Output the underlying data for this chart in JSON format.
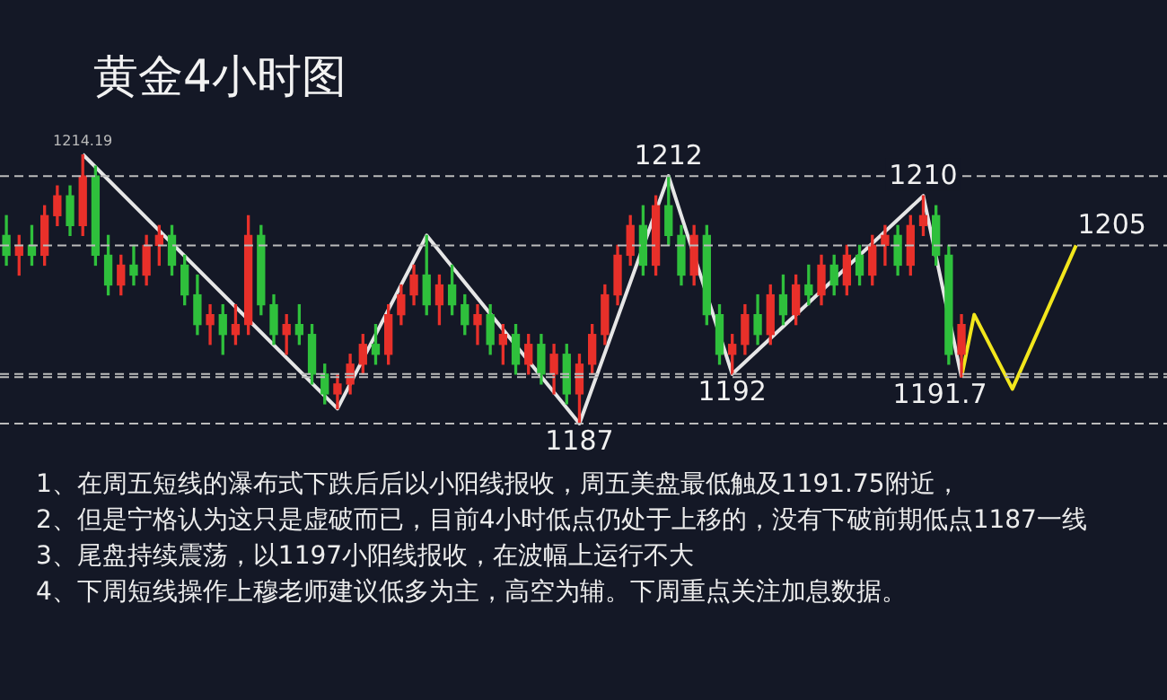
{
  "chart_data": {
    "type": "candlestick",
    "title": "黄金4小时图",
    "categories": [
      null,
      null,
      null,
      null,
      null,
      null,
      null,
      null,
      null,
      null,
      null,
      null,
      null,
      null,
      null,
      null,
      null,
      null,
      null,
      null,
      null,
      null,
      null,
      null,
      null,
      null,
      null,
      null,
      null,
      null,
      null,
      null,
      null,
      null,
      null,
      null,
      null,
      null,
      null,
      null,
      null,
      null,
      null,
      null,
      null,
      null,
      null,
      null,
      null,
      null,
      null,
      null,
      null,
      null,
      null,
      null,
      null,
      null,
      null,
      null,
      null,
      null,
      null,
      null,
      null,
      null,
      null,
      null,
      null,
      null,
      null,
      null,
      null,
      null,
      null,
      null,
      null,
      null,
      null,
      null,
      null,
      null,
      null,
      null,
      null,
      null
    ],
    "ohlc": [
      [
        1206,
        1208,
        1203,
        1204
      ],
      [
        1204,
        1206,
        1202,
        1205
      ],
      [
        1205,
        1207,
        1203,
        1204
      ],
      [
        1204,
        1209,
        1203,
        1208
      ],
      [
        1208,
        1211,
        1207,
        1210
      ],
      [
        1210,
        1211,
        1206,
        1207
      ],
      [
        1207,
        1214.19,
        1206,
        1212
      ],
      [
        1212,
        1213,
        1203,
        1204
      ],
      [
        1204,
        1206,
        1200,
        1201
      ],
      [
        1201,
        1204,
        1200,
        1203
      ],
      [
        1203,
        1205,
        1201,
        1202
      ],
      [
        1202,
        1206,
        1201,
        1205
      ],
      [
        1205,
        1207,
        1203,
        1206
      ],
      [
        1206,
        1207,
        1202,
        1203
      ],
      [
        1203,
        1204,
        1199,
        1200
      ],
      [
        1200,
        1202,
        1196,
        1197
      ],
      [
        1197,
        1199,
        1195,
        1198
      ],
      [
        1198,
        1199,
        1194,
        1196
      ],
      [
        1196,
        1199,
        1195,
        1197
      ],
      [
        1197,
        1208,
        1196,
        1206
      ],
      [
        1206,
        1207,
        1198,
        1199
      ],
      [
        1199,
        1200,
        1195,
        1196
      ],
      [
        1196,
        1198,
        1194,
        1197
      ],
      [
        1197,
        1199,
        1195,
        1196
      ],
      [
        1196,
        1197,
        1191,
        1192
      ],
      [
        1192,
        1193,
        1189,
        1190
      ],
      [
        1190,
        1192,
        1188.5,
        1191
      ],
      [
        1191,
        1194,
        1190,
        1193
      ],
      [
        1193,
        1196,
        1192,
        1195
      ],
      [
        1195,
        1197,
        1193,
        1194
      ],
      [
        1194,
        1199,
        1193,
        1198
      ],
      [
        1198,
        1201,
        1197,
        1200
      ],
      [
        1200,
        1203,
        1199,
        1202
      ],
      [
        1202,
        1206,
        1198,
        1199
      ],
      [
        1199,
        1202,
        1197,
        1201
      ],
      [
        1201,
        1203,
        1198,
        1199
      ],
      [
        1199,
        1200,
        1196,
        1197
      ],
      [
        1197,
        1199,
        1195,
        1198
      ],
      [
        1198,
        1199,
        1194,
        1195
      ],
      [
        1195,
        1197,
        1193,
        1196
      ],
      [
        1196,
        1197,
        1192,
        1193
      ],
      [
        1193,
        1196,
        1192,
        1195
      ],
      [
        1195,
        1196,
        1191,
        1192
      ],
      [
        1192,
        1195,
        1190,
        1194
      ],
      [
        1194,
        1195,
        1189,
        1190
      ],
      [
        1190,
        1194,
        1187,
        1193
      ],
      [
        1193,
        1197,
        1192,
        1196
      ],
      [
        1196,
        1201,
        1195,
        1200
      ],
      [
        1200,
        1205,
        1199,
        1204
      ],
      [
        1204,
        1208,
        1203,
        1207
      ],
      [
        1207,
        1209,
        1202,
        1203
      ],
      [
        1203,
        1210,
        1202,
        1209
      ],
      [
        1209,
        1212,
        1205,
        1206
      ],
      [
        1206,
        1207,
        1201,
        1202
      ],
      [
        1202,
        1207,
        1201,
        1206
      ],
      [
        1206,
        1207,
        1197,
        1198
      ],
      [
        1198,
        1199,
        1193,
        1194
      ],
      [
        1194,
        1196,
        1192,
        1195
      ],
      [
        1195,
        1199,
        1194,
        1198
      ],
      [
        1198,
        1200,
        1195,
        1196
      ],
      [
        1196,
        1201,
        1195,
        1200
      ],
      [
        1200,
        1202,
        1197,
        1198
      ],
      [
        1198,
        1202,
        1197,
        1201
      ],
      [
        1201,
        1203,
        1199,
        1200
      ],
      [
        1200,
        1204,
        1199,
        1203
      ],
      [
        1203,
        1204,
        1200,
        1201
      ],
      [
        1201,
        1205,
        1200,
        1204
      ],
      [
        1204,
        1205,
        1201,
        1202
      ],
      [
        1202,
        1206,
        1201,
        1205
      ],
      [
        1205,
        1207,
        1203,
        1206
      ],
      [
        1206,
        1207,
        1202,
        1203
      ],
      [
        1203,
        1208,
        1202,
        1207
      ],
      [
        1207,
        1210,
        1206,
        1208
      ],
      [
        1208,
        1209,
        1203,
        1204
      ],
      [
        1204,
        1205,
        1193,
        1194
      ],
      [
        1194,
        1198,
        1191.7,
        1197
      ],
      null,
      null,
      null,
      null,
      null,
      null,
      null,
      null,
      null,
      null
    ],
    "colors": [
      "#2fc03c",
      "#e8302a",
      "#2fc03c",
      "#e8302a",
      "#e8302a",
      "#2fc03c",
      "#e8302a",
      "#2fc03c",
      "#2fc03c",
      "#e8302a",
      "#2fc03c",
      "#e8302a",
      "#e8302a",
      "#2fc03c",
      "#2fc03c",
      "#2fc03c",
      "#e8302a",
      "#2fc03c",
      "#e8302a",
      "#e8302a",
      "#2fc03c",
      "#2fc03c",
      "#e8302a",
      "#2fc03c",
      "#2fc03c",
      "#2fc03c",
      "#e8302a",
      "#e8302a",
      "#e8302a",
      "#2fc03c",
      "#e8302a",
      "#e8302a",
      "#e8302a",
      "#2fc03c",
      "#e8302a",
      "#2fc03c",
      "#2fc03c",
      "#e8302a",
      "#2fc03c",
      "#e8302a",
      "#2fc03c",
      "#e8302a",
      "#2fc03c",
      "#e8302a",
      "#2fc03c",
      "#e8302a",
      "#e8302a",
      "#e8302a",
      "#e8302a",
      "#e8302a",
      "#2fc03c",
      "#e8302a",
      "#2fc03c",
      "#2fc03c",
      "#e8302a",
      "#2fc03c",
      "#2fc03c",
      "#e8302a",
      "#e8302a",
      "#2fc03c",
      "#e8302a",
      "#2fc03c",
      "#e8302a",
      "#2fc03c",
      "#e8302a",
      "#2fc03c",
      "#e8302a",
      "#2fc03c",
      "#e8302a",
      "#e8302a",
      "#2fc03c",
      "#e8302a",
      "#e8302a",
      "#2fc03c",
      "#2fc03c",
      "#e8302a",
      null,
      null,
      null,
      null,
      null,
      null,
      null,
      null,
      null,
      null
    ],
    "series": [
      {
        "type": "line",
        "color": "#e6e6e6",
        "values": [
          null,
          null,
          null,
          null,
          null,
          null,
          1214.19,
          null,
          null,
          null,
          null,
          null,
          null,
          null,
          null,
          null,
          null,
          null,
          null,
          null,
          null,
          null,
          null,
          null,
          null,
          null,
          1188.5,
          null,
          null,
          null,
          null,
          null,
          null,
          1206,
          null,
          null,
          null,
          null,
          null,
          null,
          null,
          null,
          null,
          null,
          null,
          1187,
          null,
          null,
          null,
          null,
          null,
          null,
          1212,
          null,
          null,
          null,
          null,
          1192,
          null,
          null,
          null,
          null,
          null,
          null,
          null,
          null,
          null,
          null,
          null,
          null,
          null,
          null,
          1210,
          null,
          null,
          1191.7,
          null,
          null,
          null,
          null,
          null,
          null,
          null,
          null,
          null,
          null
        ]
      },
      {
        "type": "line",
        "color": "#f2e61c",
        "values": [
          null,
          null,
          null,
          null,
          null,
          null,
          null,
          null,
          null,
          null,
          null,
          null,
          null,
          null,
          null,
          null,
          null,
          null,
          null,
          null,
          null,
          null,
          null,
          null,
          null,
          null,
          null,
          null,
          null,
          null,
          null,
          null,
          null,
          null,
          null,
          null,
          null,
          null,
          null,
          null,
          null,
          null,
          null,
          null,
          null,
          null,
          null,
          null,
          null,
          null,
          null,
          null,
          null,
          null,
          null,
          null,
          null,
          null,
          null,
          null,
          null,
          null,
          null,
          null,
          null,
          null,
          null,
          null,
          null,
          null,
          null,
          null,
          null,
          null,
          null,
          1191.7,
          1198,
          null,
          null,
          1190.5,
          null,
          null,
          null,
          null,
          1205,
          null
        ]
      }
    ],
    "ref_lines": [
      {
        "axis": "y",
        "value": 1212,
        "label": "1212",
        "color": "#bbbbbb",
        "line_style": "dashed"
      },
      {
        "axis": "y",
        "value": 1187,
        "label": "1187",
        "color": "#bbbbbb",
        "line_style": "dashed"
      },
      {
        "axis": "y",
        "value": 1192,
        "label": "1192",
        "color": "#bbbbbb",
        "line_style": "dashed"
      },
      {
        "axis": "y",
        "value": 1205,
        "label": "1205",
        "color": "#bbbbbb",
        "line_style": "dashed"
      },
      {
        "axis": "y",
        "value": 1191.7,
        "label": "1191.7",
        "color": "#bbbbbb",
        "line_style": "dashed"
      }
    ],
    "annotations": [
      {
        "text": "1214.19",
        "y": 1214.19
      },
      {
        "text": "1210",
        "y": 1210
      },
      "1、在周五短线的瀑布式下跌后后以小阳线报收，周五美盘最低触及1191.75附近，",
      "2、但是宁格认为这只是虚破而已，目前4小时低点仍处于上移的，没有下破前期低点1187一线",
      "3、尾盘持续震荡，以1197小阳线报收，在波幅上运行不大",
      "4、下周短线操作上穆老师建议低多为主，高空为辅。下周重点关注加息数据。"
    ],
    "tick_labels": false,
    "marker": "none",
    "line_style": "solid"
  }
}
